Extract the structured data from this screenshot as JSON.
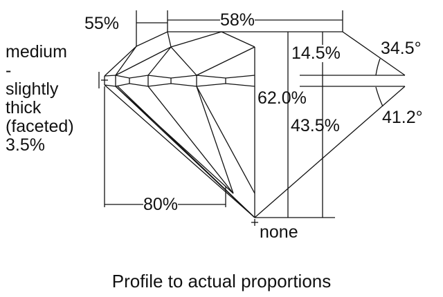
{
  "labels": {
    "crown_height_ratio": "55%",
    "table": "58%",
    "crown_height": "14.5%",
    "crown_angle": "34.5°",
    "total_depth": "62.0%",
    "pavilion_depth": "43.5%",
    "pavilion_angle": "41.2°",
    "lower_half": "80%",
    "culet": "none"
  },
  "girdle": [
    "medium",
    "-",
    "slightly",
    "thick",
    "(faceted)",
    "3.5%"
  ],
  "caption": "Profile to actual proportions",
  "colors": {
    "line": "#111111",
    "background": "#ffffff"
  }
}
